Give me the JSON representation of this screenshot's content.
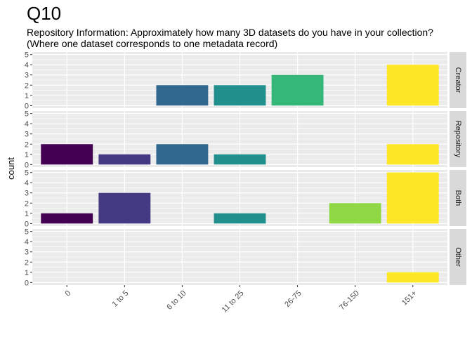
{
  "chart_data": {
    "type": "bar",
    "title": "Q10",
    "subtitle": "Repository Information: Approximately how many 3D datasets do you have in your collection? (Where one dataset corresponds to one metadata record)",
    "xlabel": "",
    "ylabel": "count",
    "categories": [
      "0",
      "1 to 5",
      "6 to 10",
      "11 to 25",
      "26-75",
      "76-150",
      "151+"
    ],
    "category_colors": [
      "#440154",
      "#443A83",
      "#31688E",
      "#21908C",
      "#35B779",
      "#8FD744",
      "#FDE725"
    ],
    "ylim": [
      0,
      5
    ],
    "yticks": [
      0,
      1,
      2,
      3,
      4,
      5
    ],
    "grid": true,
    "facet_direction": "rows",
    "panel_background": "#EBEBEB",
    "strip_background": "#D9D9D9",
    "facets": [
      {
        "name": "Creator",
        "values": [
          0,
          0,
          2,
          2,
          3,
          0,
          4
        ]
      },
      {
        "name": "Repository",
        "values": [
          2,
          1,
          2,
          1,
          0,
          0,
          2
        ]
      },
      {
        "name": "Both",
        "values": [
          1,
          3,
          0,
          1,
          0,
          2,
          5
        ]
      },
      {
        "name": "Other",
        "values": [
          0,
          0,
          0,
          0,
          0,
          0,
          1
        ]
      }
    ]
  }
}
